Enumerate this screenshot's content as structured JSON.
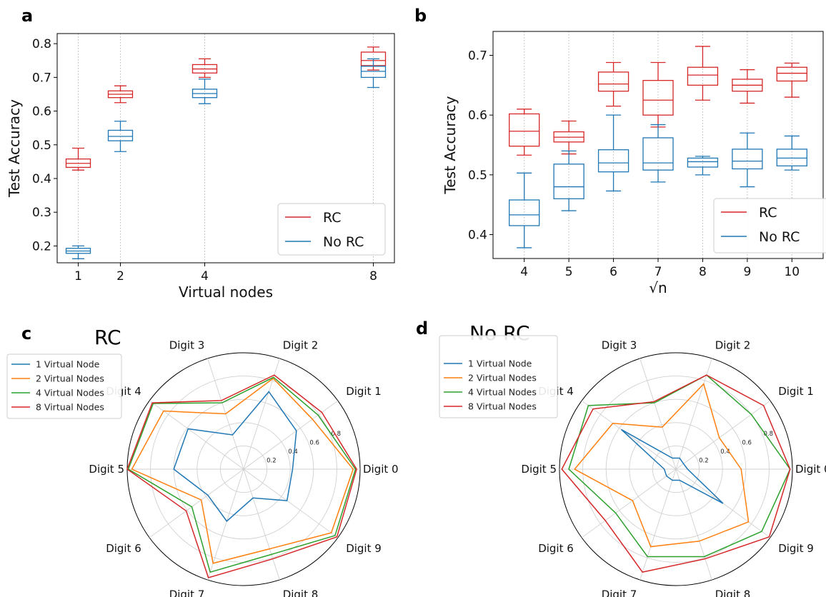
{
  "panels": {
    "a": {
      "letter": "a"
    },
    "b": {
      "letter": "b"
    },
    "c": {
      "letter": "c",
      "title": "RC"
    },
    "d": {
      "letter": "d",
      "title": "No RC"
    }
  },
  "colors": {
    "rc": "#d62728",
    "norc": "#1f77b4",
    "v1": "#1f77b4",
    "v2": "#ff7f0e",
    "v4": "#2ca02c",
    "v8": "#d62728"
  },
  "chart_data": [
    {
      "type": "box",
      "panel": "a",
      "xlabel": "Virtual nodes",
      "ylabel": "Test Accuracy",
      "x": [
        1,
        2,
        4,
        8
      ],
      "x_tick_labels": [
        "1",
        "2",
        "4",
        "8"
      ],
      "xlim": [
        0.5,
        8.5
      ],
      "ylim": [
        0.15,
        0.83
      ],
      "y_ticks": [
        0.2,
        0.3,
        0.4,
        0.5,
        0.6,
        0.7,
        0.8
      ],
      "y_tick_labels": [
        "0.2",
        "0.3",
        "0.4",
        "0.5",
        "0.6",
        "0.7",
        "0.8"
      ],
      "legend": {
        "position": "lower-right",
        "entries": [
          "RC",
          "No RC"
        ]
      },
      "grid": "vertical dotted",
      "series": [
        {
          "name": "RC",
          "color": "#d62728",
          "boxes": [
            {
              "x": 1,
              "min": 0.425,
              "q1": 0.433,
              "median": 0.445,
              "q3": 0.458,
              "max": 0.49
            },
            {
              "x": 2,
              "min": 0.625,
              "q1": 0.64,
              "median": 0.65,
              "q3": 0.66,
              "max": 0.675
            },
            {
              "x": 4,
              "min": 0.7,
              "q1": 0.713,
              "median": 0.725,
              "q3": 0.738,
              "max": 0.755
            },
            {
              "x": 8,
              "min": 0.722,
              "q1": 0.735,
              "median": 0.75,
              "q3": 0.775,
              "max": 0.79
            }
          ]
        },
        {
          "name": "No RC",
          "color": "#1f77b4",
          "boxes": [
            {
              "x": 1,
              "min": 0.162,
              "q1": 0.178,
              "median": 0.185,
              "q3": 0.193,
              "max": 0.2
            },
            {
              "x": 2,
              "min": 0.48,
              "q1": 0.512,
              "median": 0.525,
              "q3": 0.543,
              "max": 0.57
            },
            {
              "x": 4,
              "min": 0.622,
              "q1": 0.64,
              "median": 0.652,
              "q3": 0.665,
              "max": 0.695
            },
            {
              "x": 8,
              "min": 0.67,
              "q1": 0.7,
              "median": 0.718,
              "q3": 0.733,
              "max": 0.755
            }
          ]
        }
      ]
    },
    {
      "type": "box",
      "panel": "b",
      "xlabel": "√n",
      "ylabel": "Test Accuracy",
      "x": [
        4,
        5,
        6,
        7,
        8,
        9,
        10
      ],
      "x_tick_labels": [
        "4",
        "5",
        "6",
        "7",
        "8",
        "9",
        "10"
      ],
      "xlim": [
        3.3,
        10.7
      ],
      "ylim": [
        0.36,
        0.74
      ],
      "y_ticks": [
        0.4,
        0.5,
        0.6,
        0.7
      ],
      "y_tick_labels": [
        "0.4",
        "0.5",
        "0.6",
        "0.7"
      ],
      "legend": {
        "position": "lower-right",
        "entries": [
          "RC",
          "No RC"
        ]
      },
      "grid": "vertical dotted",
      "series": [
        {
          "name": "RC",
          "color": "#d62728",
          "boxes": [
            {
              "x": 4,
              "min": 0.533,
              "q1": 0.548,
              "median": 0.573,
              "q3": 0.602,
              "max": 0.61
            },
            {
              "x": 5,
              "min": 0.535,
              "q1": 0.555,
              "median": 0.563,
              "q3": 0.572,
              "max": 0.59
            },
            {
              "x": 6,
              "min": 0.615,
              "q1": 0.64,
              "median": 0.652,
              "q3": 0.672,
              "max": 0.688
            },
            {
              "x": 7,
              "min": 0.58,
              "q1": 0.6,
              "median": 0.625,
              "q3": 0.658,
              "max": 0.688
            },
            {
              "x": 8,
              "min": 0.625,
              "q1": 0.65,
              "median": 0.667,
              "q3": 0.68,
              "max": 0.715
            },
            {
              "x": 9,
              "min": 0.62,
              "q1": 0.64,
              "median": 0.65,
              "q3": 0.66,
              "max": 0.676
            },
            {
              "x": 10,
              "min": 0.63,
              "q1": 0.657,
              "median": 0.67,
              "q3": 0.68,
              "max": 0.687
            }
          ]
        },
        {
          "name": "No RC",
          "color": "#1f77b4",
          "boxes": [
            {
              "x": 4,
              "min": 0.378,
              "q1": 0.415,
              "median": 0.433,
              "q3": 0.458,
              "max": 0.503
            },
            {
              "x": 5,
              "min": 0.44,
              "q1": 0.46,
              "median": 0.48,
              "q3": 0.518,
              "max": 0.54
            },
            {
              "x": 6,
              "min": 0.473,
              "q1": 0.505,
              "median": 0.52,
              "q3": 0.542,
              "max": 0.6
            },
            {
              "x": 7,
              "min": 0.488,
              "q1": 0.508,
              "median": 0.52,
              "q3": 0.562,
              "max": 0.584
            },
            {
              "x": 8,
              "min": 0.5,
              "q1": 0.513,
              "median": 0.522,
              "q3": 0.528,
              "max": 0.531
            },
            {
              "x": 9,
              "min": 0.48,
              "q1": 0.51,
              "median": 0.523,
              "q3": 0.543,
              "max": 0.57
            },
            {
              "x": 10,
              "min": 0.508,
              "q1": 0.515,
              "median": 0.528,
              "q3": 0.543,
              "max": 0.565
            }
          ]
        }
      ]
    },
    {
      "type": "radar",
      "panel": "c",
      "title": "RC",
      "categories": [
        "Digit 0",
        "Digit 1",
        "Digit 2",
        "Digit 3",
        "Digit 4",
        "Digit 5",
        "Digit 6",
        "Digit 7",
        "Digit 8",
        "Digit 9"
      ],
      "rlim": [
        0,
        1
      ],
      "r_ticks": [
        0.2,
        0.4,
        0.6,
        0.8
      ],
      "r_tick_labels": [
        "0.2",
        "0.4",
        "0.6",
        "0.8"
      ],
      "legend": {
        "position": "top-left",
        "entries": [
          "1 Virtual Node",
          "2 Virtual Nodes",
          "4 Virtual Nodes",
          "8 Virtual Nodes"
        ]
      },
      "series": [
        {
          "name": "1 Virtual Node",
          "color": "#1f77b4",
          "values": [
            0.42,
            0.56,
            0.7,
            0.31,
            0.59,
            0.6,
            0.38,
            0.47,
            0.26,
            0.46
          ]
        },
        {
          "name": "2 Virtual Nodes",
          "color": "#ff7f0e",
          "values": [
            0.94,
            0.73,
            0.82,
            0.5,
            0.85,
            0.96,
            0.45,
            0.85,
            0.72,
            0.93
          ]
        },
        {
          "name": "4 Virtual Nodes",
          "color": "#2ca02c",
          "values": [
            0.96,
            0.79,
            0.83,
            0.6,
            0.96,
            0.99,
            0.55,
            0.93,
            0.77,
            0.97
          ]
        },
        {
          "name": "8 Virtual Nodes",
          "color": "#d62728",
          "values": [
            0.97,
            0.83,
            0.85,
            0.62,
            0.97,
            1.0,
            0.61,
            0.98,
            0.81,
            0.99
          ]
        }
      ]
    },
    {
      "type": "radar",
      "panel": "d",
      "title": "No RC",
      "categories": [
        "Digit 0",
        "Digit 1",
        "Digit 2",
        "Digit 3",
        "Digit 4",
        "Digit 5",
        "Digit 6",
        "Digit 7",
        "Digit 8",
        "Digit 9"
      ],
      "rlim": [
        0,
        1
      ],
      "r_ticks": [
        0.2,
        0.4,
        0.6,
        0.8
      ],
      "r_tick_labels": [
        "0.2",
        "0.4",
        "0.6",
        "0.8"
      ],
      "legend": {
        "position": "top-left",
        "entries": [
          "1 Virtual Node",
          "2 Virtual Nodes",
          "4 Virtual Nodes",
          "8 Virtual Nodes"
        ]
      },
      "series": [
        {
          "name": "1 Virtual Node",
          "color": "#1f77b4",
          "values": [
            0.1,
            0.08,
            0.1,
            0.1,
            0.58,
            0.1,
            0.1,
            0.1,
            0.1,
            0.5
          ]
        },
        {
          "name": "2 Virtual Nodes",
          "color": "#ff7f0e",
          "values": [
            0.56,
            0.46,
            0.77,
            0.38,
            0.67,
            0.87,
            0.46,
            0.7,
            0.65,
            0.77
          ]
        },
        {
          "name": "4 Virtual Nodes",
          "color": "#2ca02c",
          "values": [
            0.98,
            0.8,
            0.85,
            0.6,
            0.93,
            0.92,
            0.64,
            0.79,
            0.79,
            0.91
          ]
        },
        {
          "name": "8 Virtual Nodes",
          "color": "#d62728",
          "values": [
            0.98,
            0.93,
            0.85,
            0.61,
            0.88,
            0.98,
            0.75,
            0.93,
            0.81,
            0.99
          ]
        }
      ]
    }
  ]
}
